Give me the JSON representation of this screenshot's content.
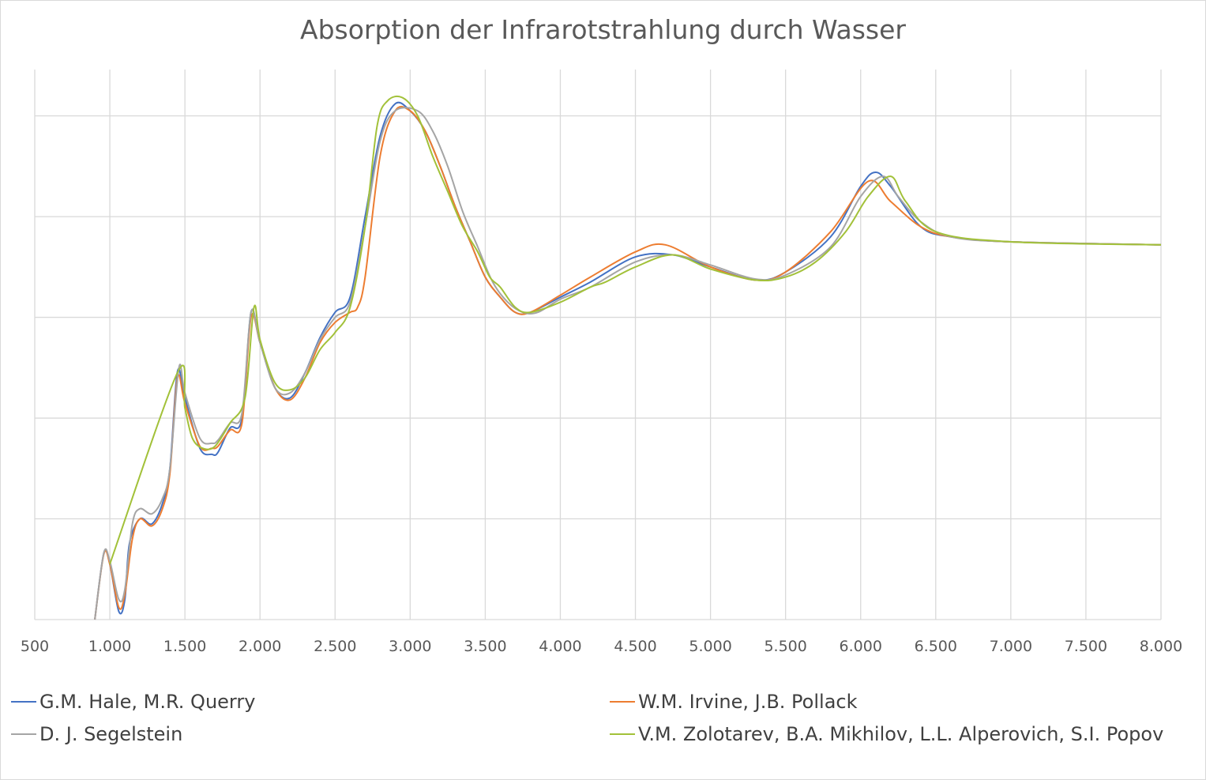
{
  "chart_data": {
    "type": "line",
    "title": "Absorption der Infrarotstrahlung durch Wasser",
    "xlabel": "",
    "ylabel": "",
    "xlim": [
      500,
      8000
    ],
    "ylim": [
      0,
      5.46
    ],
    "grid": true,
    "legend_position": "bottom",
    "x_ticks": [
      500,
      1000,
      1500,
      2000,
      2500,
      3000,
      3500,
      4000,
      4500,
      5000,
      5500,
      6000,
      6500,
      7000,
      7500,
      8000
    ],
    "x_tick_labels": [
      "500",
      "1.000",
      "1.500",
      "2.000",
      "2.500",
      "3.000",
      "3.500",
      "4.000",
      "4.500",
      "5.000",
      "5.500",
      "6.000",
      "6.500",
      "7.000",
      "7.500",
      "8.000"
    ],
    "y_gridlines": [
      1,
      2,
      3,
      4,
      5
    ],
    "series": [
      {
        "name": "G.M. Hale, M.R. Querry",
        "color": "#4472C4",
        "x": [
          900,
          960,
          1000,
          1060,
          1100,
          1130,
          1200,
          1280,
          1350,
          1400,
          1450,
          1500,
          1600,
          1680,
          1720,
          1800,
          1880,
          1940,
          2000,
          2100,
          2200,
          2300,
          2400,
          2500,
          2600,
          2700,
          2800,
          2900,
          3000,
          3100,
          3200,
          3300,
          3400,
          3500,
          3600,
          3700,
          3800,
          4000,
          4200,
          4500,
          4750,
          5000,
          5300,
          5500,
          5800,
          6000,
          6100,
          6200,
          6400,
          6600,
          7000,
          8000
        ],
        "y": [
          0,
          0.66,
          0.55,
          0.08,
          0.2,
          0.75,
          1.0,
          0.95,
          1.15,
          1.5,
          2.46,
          2.2,
          1.7,
          1.64,
          1.66,
          1.9,
          2.0,
          3.05,
          2.75,
          2.3,
          2.2,
          2.45,
          2.8,
          3.05,
          3.2,
          4.0,
          4.8,
          5.12,
          5.05,
          4.85,
          4.5,
          4.1,
          3.75,
          3.4,
          3.2,
          3.05,
          3.05,
          3.2,
          3.35,
          3.6,
          3.62,
          3.5,
          3.37,
          3.45,
          3.8,
          4.3,
          4.44,
          4.3,
          3.9,
          3.8,
          3.75,
          3.72
        ]
      },
      {
        "name": "W.M. Irvine,  J.B. Pollack",
        "color": "#ED7D31",
        "x": [
          900,
          960,
          1000,
          1060,
          1100,
          1150,
          1200,
          1280,
          1350,
          1400,
          1450,
          1500,
          1600,
          1680,
          1720,
          1800,
          1880,
          1940,
          2000,
          2100,
          2200,
          2300,
          2400,
          2500,
          2600,
          2650,
          2700,
          2800,
          2900,
          3000,
          3100,
          3200,
          3300,
          3400,
          3500,
          3600,
          3700,
          3800,
          4000,
          4200,
          4500,
          4700,
          5000,
          5300,
          5500,
          5800,
          6050,
          6200,
          6400,
          6600,
          7000,
          8000
        ],
        "y": [
          0,
          0.65,
          0.55,
          0.12,
          0.25,
          0.8,
          1.0,
          0.93,
          1.1,
          1.45,
          2.4,
          2.15,
          1.72,
          1.7,
          1.72,
          1.88,
          1.95,
          3.0,
          2.75,
          2.3,
          2.18,
          2.4,
          2.75,
          2.95,
          3.05,
          3.1,
          3.4,
          4.6,
          5.05,
          5.05,
          4.85,
          4.5,
          4.1,
          3.75,
          3.4,
          3.2,
          3.05,
          3.05,
          3.22,
          3.4,
          3.65,
          3.72,
          3.5,
          3.37,
          3.45,
          3.85,
          4.35,
          4.15,
          3.9,
          3.8,
          3.75,
          3.72
        ]
      },
      {
        "name": "D. J. Segelstein",
        "color": "#A5A5A5",
        "x": [
          900,
          960,
          1000,
          1060,
          1100,
          1150,
          1200,
          1280,
          1350,
          1400,
          1460,
          1500,
          1600,
          1680,
          1720,
          1800,
          1880,
          1940,
          2000,
          2100,
          2200,
          2300,
          2400,
          2500,
          2600,
          2700,
          2800,
          2900,
          3050,
          3150,
          3250,
          3350,
          3450,
          3550,
          3650,
          3750,
          3850,
          4000,
          4200,
          4500,
          4750,
          5000,
          5300,
          5500,
          5800,
          6000,
          6150,
          6250,
          6400,
          6600,
          7000,
          8000
        ],
        "y": [
          0,
          0.66,
          0.58,
          0.2,
          0.3,
          0.95,
          1.1,
          1.05,
          1.2,
          1.5,
          2.5,
          2.25,
          1.8,
          1.75,
          1.78,
          1.95,
          2.05,
          3.05,
          2.75,
          2.3,
          2.25,
          2.45,
          2.78,
          3.0,
          3.15,
          3.9,
          4.75,
          5.05,
          5.05,
          4.85,
          4.5,
          4.05,
          3.7,
          3.35,
          3.15,
          3.05,
          3.05,
          3.18,
          3.3,
          3.55,
          3.62,
          3.52,
          3.38,
          3.42,
          3.7,
          4.2,
          4.4,
          4.2,
          3.95,
          3.8,
          3.75,
          3.72
        ]
      },
      {
        "name": "V.M. Zolotarev, B.A. Mikhilov, L.L. Alperovich, S.I. Popov",
        "color": "#A2C139",
        "x": [
          1000,
          1450,
          1500,
          1550,
          1620,
          1700,
          1800,
          1900,
          1960,
          2000,
          2100,
          2200,
          2300,
          2400,
          2500,
          2600,
          2700,
          2780,
          2850,
          2950,
          3050,
          3150,
          3250,
          3350,
          3450,
          3530,
          3600,
          3700,
          3800,
          4000,
          4200,
          4300,
          4500,
          4750,
          5000,
          5300,
          5500,
          5700,
          5900,
          6050,
          6200,
          6300,
          6500,
          7000,
          8000
        ],
        "y": [
          0.55,
          2.45,
          2.1,
          1.8,
          1.7,
          1.72,
          1.95,
          2.2,
          3.1,
          2.78,
          2.35,
          2.28,
          2.4,
          2.68,
          2.85,
          3.1,
          3.9,
          4.9,
          5.15,
          5.18,
          5.0,
          4.6,
          4.25,
          3.9,
          3.65,
          3.4,
          3.3,
          3.1,
          3.05,
          3.15,
          3.3,
          3.35,
          3.5,
          3.62,
          3.48,
          3.37,
          3.4,
          3.55,
          3.85,
          4.2,
          4.4,
          4.15,
          3.85,
          3.75,
          3.72
        ]
      }
    ]
  }
}
